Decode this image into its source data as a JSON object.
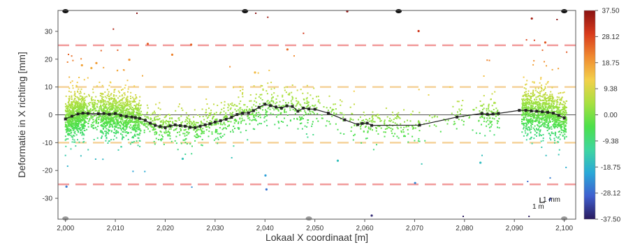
{
  "chart_data": {
    "type": "scatter",
    "xlabel": "Lokaal X coordinaat [m]",
    "ylabel": "Deformatie in X richting [mm]",
    "xlim": [
      1998.5,
      2102.3
    ],
    "ylim": [
      -37.5,
      37.5
    ],
    "x_ticks": [
      2000,
      2010,
      2020,
      2030,
      2040,
      2050,
      2060,
      2070,
      2080,
      2090,
      2100
    ],
    "x_tick_labels": [
      "2,000",
      "2,010",
      "2,020",
      "2,030",
      "2,040",
      "2,050",
      "2,060",
      "2,070",
      "2,080",
      "2,090",
      "2,100"
    ],
    "y_ticks": [
      30,
      20,
      10,
      0,
      -10,
      -20,
      -30
    ],
    "y_tick_labels": [
      "30",
      "20",
      "10",
      "0",
      "-10",
      "-20",
      "-30"
    ],
    "grid": false,
    "threshold_lines": [
      {
        "y": 25,
        "color": "#f19a9a"
      },
      {
        "y": 10,
        "color": "#f5d29a"
      },
      {
        "y": -10,
        "color": "#f5d29a"
      },
      {
        "y": -25,
        "color": "#f19a9a"
      }
    ],
    "colorbar": {
      "min": -37.5,
      "max": 37.5,
      "tick_values": [
        37.5,
        28.12,
        18.75,
        9.38,
        0.0,
        -9.38,
        -18.75,
        -28.12,
        -37.5
      ],
      "tick_labels": [
        "37.50",
        "28.12",
        "18.75",
        "9.38",
        "0.00",
        "-9.38",
        "-18.75",
        "-28.12",
        "-37.50"
      ],
      "colors": [
        "#2a1a5e",
        "#3f5fcf",
        "#2aa8d8",
        "#3fd6a0",
        "#4ce04a",
        "#a8e040",
        "#f3d04a",
        "#f08a30",
        "#d83a1c",
        "#8a1212"
      ]
    },
    "series": [
      {
        "type": "line",
        "color": "#222222",
        "x": [
          2000.0,
          2001.3,
          2002.5,
          2003.5,
          2004.5,
          2006.6,
          2007.7,
          2008.8,
          2010.0,
          2011.1,
          2012.2,
          2013.3,
          2014.0,
          2014.9,
          2016.0,
          2017.0,
          2018.0,
          2019.0,
          2020.0,
          2021.0,
          2022.0,
          2023.0,
          2024.0,
          2025.0,
          2026.0,
          2027.0,
          2028.0,
          2029.0,
          2030.0,
          2031.1,
          2032.2,
          2033.3,
          2034.4,
          2035.5,
          2036.7,
          2037.7,
          2038.8,
          2040.0,
          2041.1,
          2042.2,
          2043.3,
          2044.4,
          2045.5,
          2046.6,
          2047.7,
          2048.8,
          2050.0,
          2052.7,
          2056.0,
          2058.6,
          2059.5,
          2060.5,
          2061.4,
          2071.0,
          2078.5,
          2083.5,
          2084.6,
          2085.7,
          2086.8,
          2091.0,
          2092.3,
          2093.4,
          2094.5,
          2095.6,
          2096.7,
          2097.8,
          2098.9,
          2100.0
        ],
        "y": [
          -1.5,
          -0.5,
          0.3,
          0.6,
          0.5,
          0.4,
          0.5,
          0.2,
          0.5,
          -0.2,
          -0.6,
          -0.8,
          -1.0,
          -1.3,
          -2.0,
          -3.0,
          -3.8,
          -4.2,
          -4.6,
          -4.0,
          -3.6,
          -3.9,
          -4.1,
          -4.5,
          -4.6,
          -4.1,
          -3.6,
          -3.2,
          -2.6,
          -2.1,
          -1.6,
          -0.9,
          0.1,
          0.6,
          0.7,
          1.5,
          2.7,
          3.8,
          3.3,
          2.8,
          2.4,
          3.2,
          3.0,
          1.3,
          2.4,
          2.1,
          2.0,
          0.6,
          -1.8,
          -3.5,
          -3.1,
          -3.0,
          -3.8,
          -3.7,
          -0.8,
          0.5,
          0.2,
          0.3,
          0.5,
          1.6,
          1.6,
          1.4,
          1.3,
          1.1,
          0.9,
          0.6,
          -0.2,
          -1.1
        ]
      }
    ],
    "outliers": [
      {
        "x": 2005.2,
        "y": 16.8,
        "v": 16.8
      },
      {
        "x": 2003.3,
        "y": 17.8,
        "v": 17.8
      },
      {
        "x": 2006.2,
        "y": 18.6,
        "v": 18.6
      },
      {
        "x": 2012.8,
        "y": 19.8,
        "v": 19.8
      },
      {
        "x": 2016.5,
        "y": 25.5,
        "v": 25.5
      },
      {
        "x": 2025.2,
        "y": 25.2,
        "v": 25.2
      },
      {
        "x": 2021.4,
        "y": 21.6,
        "v": 21.6
      },
      {
        "x": 2044.5,
        "y": 23.5,
        "v": 23.5
      },
      {
        "x": 2056.5,
        "y": 37.2,
        "v": 37.2
      },
      {
        "x": 2070.8,
        "y": 30.1,
        "v": 30.1
      },
      {
        "x": 2093.5,
        "y": 34.6,
        "v": 34.6
      },
      {
        "x": 2096.2,
        "y": 26.0,
        "v": 26.0
      },
      {
        "x": 2038.0,
        "y": 15.2,
        "v": 15.2
      },
      {
        "x": 2040.1,
        "y": -21.8,
        "v": -21.8
      },
      {
        "x": 2040.3,
        "y": -26.8,
        "v": -26.8
      },
      {
        "x": 2054.6,
        "y": -16.5,
        "v": -16.5
      },
      {
        "x": 2061.4,
        "y": -36.2,
        "v": -36.2
      },
      {
        "x": 2070.1,
        "y": -24.5,
        "v": -24.5
      },
      {
        "x": 2083.2,
        "y": -17.2,
        "v": -17.2
      },
      {
        "x": 2097.1,
        "y": -30.5,
        "v": -30.5
      },
      {
        "x": 2023.5,
        "y": -15.8,
        "v": -15.8
      },
      {
        "x": 2000.2,
        "y": -25.8,
        "v": -25.8
      }
    ],
    "scale_bar": {
      "label_vertical": "1 mm",
      "label_horizontal": "1 m"
    }
  }
}
